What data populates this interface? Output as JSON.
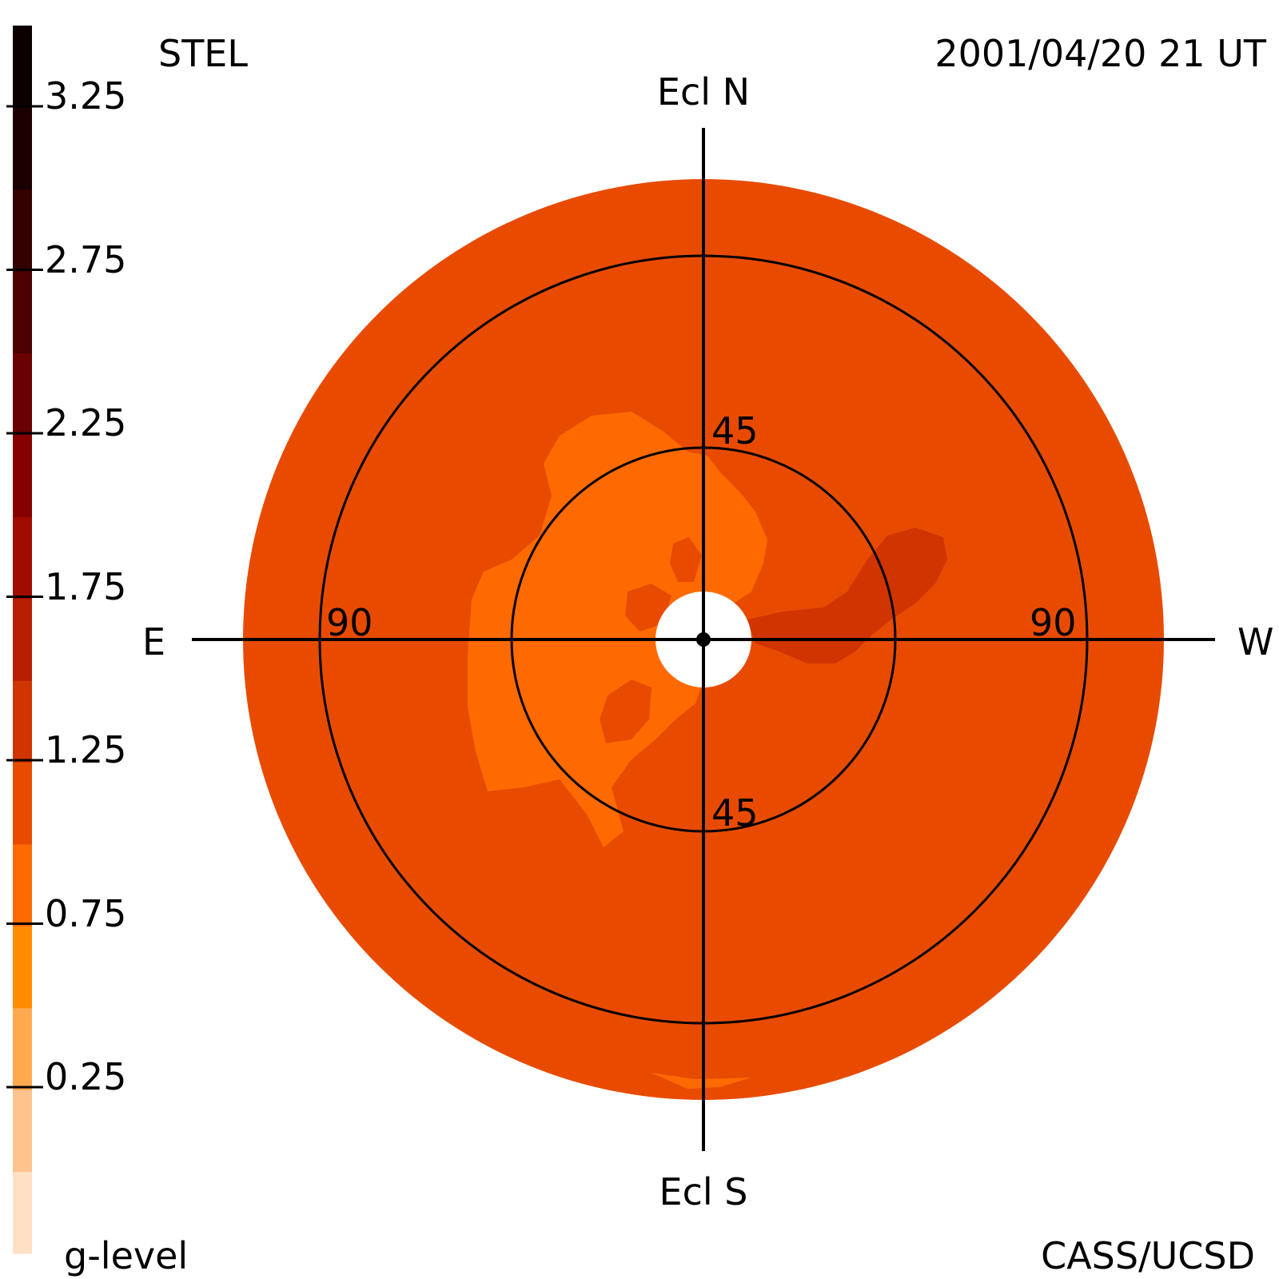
{
  "header": {
    "instrument": "STEL",
    "datetime": "2001/04/20 21 UT"
  },
  "footer": {
    "legend_label": "g-level",
    "credit": "CASS/UCSD"
  },
  "directions": {
    "north": "Ecl N",
    "south": "Ecl S",
    "east": "E",
    "west": "W"
  },
  "ring_labels": {
    "inner_top": "45",
    "inner_bottom": "45",
    "outer_left": "90",
    "outer_right": "90"
  },
  "colorbar": {
    "tick_labels": [
      "3.25",
      "2.75",
      "2.25",
      "1.75",
      "1.25",
      "0.75",
      "0.25"
    ],
    "colors_bottom_to_top": [
      "#ffe0c4",
      "#ffc48e",
      "#ffa94f",
      "#ff8c00",
      "#ff6a00",
      "#e84b00",
      "#d03400",
      "#b81f00",
      "#a00c00",
      "#860000",
      "#6a0000",
      "#4e0000",
      "#340000",
      "#1c0000",
      "#0c0000"
    ]
  },
  "colors": {
    "background": "#e84b00",
    "inner_region": "#ff6a00",
    "enhancement": "#d03400",
    "sun_disk": "#ffffff",
    "lines": "#000000"
  }
}
